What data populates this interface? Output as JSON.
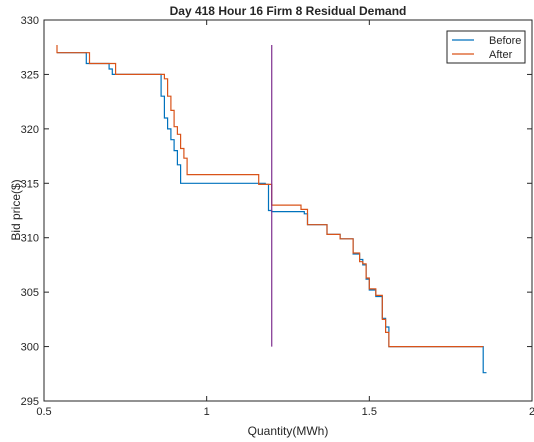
{
  "chart_data": {
    "type": "line",
    "title": "Day 418 Hour 16 Firm 8 Residual Demand",
    "xlabel": "Quantity(MWh)",
    "ylabel": "Bid price($)",
    "xlim": [
      0.5,
      2
    ],
    "ylim": [
      295,
      330
    ],
    "xticks": [
      0.5,
      1,
      1.5,
      2
    ],
    "xtick_labels": [
      "0.5",
      "1",
      "1.5",
      "2"
    ],
    "yticks": [
      295,
      300,
      305,
      310,
      315,
      320,
      325,
      330
    ],
    "ytick_labels": [
      "295",
      "300",
      "305",
      "310",
      "315",
      "320",
      "325",
      "330"
    ],
    "grid": false,
    "legend_position": "top-right",
    "step": true,
    "series": [
      {
        "name": "Before",
        "color": "#0072BD",
        "points": [
          [
            0.54,
            327
          ],
          [
            0.63,
            327
          ],
          [
            0.63,
            326
          ],
          [
            0.7,
            326
          ],
          [
            0.7,
            325.5
          ],
          [
            0.71,
            325.5
          ],
          [
            0.71,
            325
          ],
          [
            0.86,
            325
          ],
          [
            0.86,
            323
          ],
          [
            0.87,
            323
          ],
          [
            0.87,
            321
          ],
          [
            0.88,
            321
          ],
          [
            0.88,
            320
          ],
          [
            0.89,
            320
          ],
          [
            0.89,
            319
          ],
          [
            0.9,
            319
          ],
          [
            0.9,
            318
          ],
          [
            0.91,
            318
          ],
          [
            0.91,
            316.7
          ],
          [
            0.92,
            316.7
          ],
          [
            0.92,
            315
          ],
          [
            1.18,
            315
          ],
          [
            1.18,
            314.9
          ],
          [
            1.19,
            314.9
          ],
          [
            1.19,
            312.5
          ],
          [
            1.2,
            312.5
          ],
          [
            1.2,
            312.4
          ],
          [
            1.3,
            312.4
          ],
          [
            1.3,
            312.2
          ],
          [
            1.31,
            312.2
          ],
          [
            1.31,
            311.2
          ],
          [
            1.37,
            311.2
          ],
          [
            1.37,
            310.3
          ],
          [
            1.41,
            310.3
          ],
          [
            1.41,
            309.9
          ],
          [
            1.45,
            309.9
          ],
          [
            1.45,
            308.5
          ],
          [
            1.47,
            308.5
          ],
          [
            1.47,
            308
          ],
          [
            1.48,
            308
          ],
          [
            1.48,
            307.5
          ],
          [
            1.49,
            307.5
          ],
          [
            1.49,
            306.2
          ],
          [
            1.5,
            306.2
          ],
          [
            1.5,
            305.2
          ],
          [
            1.52,
            305.2
          ],
          [
            1.52,
            304.6
          ],
          [
            1.54,
            304.6
          ],
          [
            1.54,
            302.6
          ],
          [
            1.55,
            302.6
          ],
          [
            1.55,
            301.8
          ],
          [
            1.56,
            301.8
          ],
          [
            1.56,
            300
          ],
          [
            1.85,
            300
          ],
          [
            1.85,
            297.6
          ],
          [
            1.86,
            297.6
          ]
        ]
      },
      {
        "name": "After",
        "color": "#D95319",
        "points": [
          [
            0.54,
            327.7
          ],
          [
            0.54,
            327
          ],
          [
            0.64,
            327
          ],
          [
            0.64,
            326
          ],
          [
            0.72,
            326
          ],
          [
            0.72,
            325
          ],
          [
            0.87,
            325
          ],
          [
            0.87,
            324.6
          ],
          [
            0.88,
            324.6
          ],
          [
            0.88,
            323
          ],
          [
            0.89,
            323
          ],
          [
            0.89,
            321.7
          ],
          [
            0.9,
            321.7
          ],
          [
            0.9,
            320.2
          ],
          [
            0.91,
            320.2
          ],
          [
            0.91,
            319.5
          ],
          [
            0.92,
            319.5
          ],
          [
            0.92,
            318.2
          ],
          [
            0.93,
            318.2
          ],
          [
            0.93,
            317.3
          ],
          [
            0.94,
            317.3
          ],
          [
            0.94,
            315.8
          ],
          [
            1.16,
            315.8
          ],
          [
            1.16,
            314.9
          ],
          [
            1.2,
            314.9
          ],
          [
            1.2,
            313
          ],
          [
            1.29,
            313
          ],
          [
            1.29,
            312.6
          ],
          [
            1.31,
            312.6
          ],
          [
            1.31,
            311.2
          ],
          [
            1.37,
            311.2
          ],
          [
            1.37,
            310.3
          ],
          [
            1.41,
            310.3
          ],
          [
            1.41,
            309.9
          ],
          [
            1.45,
            309.9
          ],
          [
            1.45,
            308.6
          ],
          [
            1.47,
            308.6
          ],
          [
            1.47,
            307.8
          ],
          [
            1.48,
            307.8
          ],
          [
            1.48,
            307.6
          ],
          [
            1.49,
            307.6
          ],
          [
            1.49,
            306.3
          ],
          [
            1.5,
            306.3
          ],
          [
            1.5,
            305.3
          ],
          [
            1.52,
            305.3
          ],
          [
            1.52,
            304.7
          ],
          [
            1.54,
            304.7
          ],
          [
            1.54,
            302.5
          ],
          [
            1.55,
            302.5
          ],
          [
            1.55,
            301.3
          ],
          [
            1.56,
            301.3
          ],
          [
            1.56,
            300
          ],
          [
            1.85,
            300
          ]
        ]
      }
    ],
    "vertical_line": {
      "x": 1.2,
      "y_from": 300,
      "y_to": 327.7,
      "color": "#7E2F8E"
    }
  }
}
